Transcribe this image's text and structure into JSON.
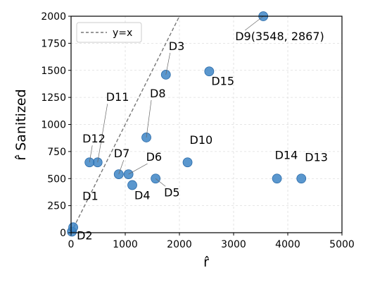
{
  "chart_data": {
    "type": "scatter",
    "xlabel": "r̂",
    "ylabel": "r̂ Sanitized",
    "xlim": [
      0,
      5000
    ],
    "ylim": [
      0,
      2000
    ],
    "x_ticks": [
      "0",
      "1000",
      "2000",
      "3000",
      "4000",
      "5000"
    ],
    "y_ticks": [
      "0",
      "250",
      "500",
      "750",
      "1000",
      "1250",
      "1500",
      "1750",
      "2000"
    ],
    "grid": true,
    "legend": {
      "placement": "top-left",
      "entries": [
        "y=x"
      ]
    },
    "reference_line": {
      "name": "y=x",
      "style": "dashed",
      "color": "#777777"
    },
    "point_color": "#3d85c6",
    "points": [
      {
        "label": "D1",
        "x": 15,
        "y": 10
      },
      {
        "label": "D2",
        "x": 40,
        "y": 50
      },
      {
        "label": "D3",
        "x": 1750,
        "y": 1460
      },
      {
        "label": "D4",
        "x": 1130,
        "y": 440
      },
      {
        "label": "D5",
        "x": 1560,
        "y": 500
      },
      {
        "label": "D6",
        "x": 1060,
        "y": 540
      },
      {
        "label": "D7",
        "x": 880,
        "y": 540
      },
      {
        "label": "D8",
        "x": 1390,
        "y": 880
      },
      {
        "label": "D9(3548, 2867)",
        "x": 3548,
        "y": 2000
      },
      {
        "label": "D10",
        "x": 2150,
        "y": 650
      },
      {
        "label": "D11",
        "x": 490,
        "y": 650
      },
      {
        "label": "D12",
        "x": 340,
        "y": 650
      },
      {
        "label": "D13",
        "x": 4250,
        "y": 500
      },
      {
        "label": "D14",
        "x": 3800,
        "y": 500
      },
      {
        "label": "D15",
        "x": 2550,
        "y": 1490
      }
    ]
  }
}
